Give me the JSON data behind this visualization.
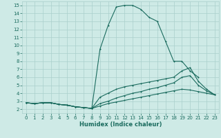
{
  "xlabel": "Humidex (Indice chaleur)",
  "bg_color": "#ceeae6",
  "grid_color": "#aacfcc",
  "line_color": "#1a6b5e",
  "xlim": [
    -0.5,
    23.5
  ],
  "ylim": [
    1.5,
    15.5
  ],
  "xticks": [
    0,
    1,
    2,
    3,
    4,
    5,
    6,
    7,
    8,
    9,
    10,
    11,
    12,
    13,
    14,
    15,
    16,
    17,
    18,
    19,
    20,
    21,
    22,
    23
  ],
  "yticks": [
    2,
    3,
    4,
    5,
    6,
    7,
    8,
    9,
    10,
    11,
    12,
    13,
    14,
    15
  ],
  "line1_x": [
    0,
    1,
    2,
    3,
    4,
    5,
    6,
    7,
    8,
    9,
    10,
    11,
    12,
    13,
    14,
    15,
    16,
    17,
    18,
    19,
    20,
    21
  ],
  "line1_y": [
    2.8,
    2.7,
    2.8,
    2.8,
    2.6,
    2.5,
    2.3,
    2.2,
    2.1,
    9.5,
    12.5,
    14.8,
    15.0,
    15.0,
    14.5,
    13.5,
    13.0,
    10.5,
    8.0,
    8.0,
    6.8,
    6.0
  ],
  "line2_x": [
    0,
    1,
    2,
    3,
    4,
    5,
    6,
    7,
    8,
    9,
    10,
    11,
    12,
    13,
    14,
    15,
    16,
    17,
    18,
    19,
    20,
    21,
    22,
    23
  ],
  "line2_y": [
    2.8,
    2.7,
    2.8,
    2.8,
    2.6,
    2.5,
    2.3,
    2.2,
    2.1,
    3.5,
    4.0,
    4.5,
    4.8,
    5.0,
    5.2,
    5.4,
    5.6,
    5.8,
    6.0,
    6.8,
    7.2,
    5.5,
    4.5,
    3.8
  ],
  "line3_x": [
    0,
    1,
    2,
    3,
    4,
    5,
    6,
    7,
    8,
    9,
    10,
    11,
    12,
    13,
    14,
    15,
    16,
    17,
    18,
    19,
    20,
    21,
    22,
    23
  ],
  "line3_y": [
    2.8,
    2.7,
    2.8,
    2.8,
    2.6,
    2.5,
    2.3,
    2.2,
    2.1,
    2.7,
    3.0,
    3.4,
    3.7,
    4.0,
    4.2,
    4.5,
    4.7,
    5.0,
    5.3,
    6.0,
    6.2,
    5.0,
    4.3,
    3.8
  ],
  "line4_x": [
    0,
    1,
    2,
    3,
    4,
    5,
    6,
    7,
    8,
    9,
    10,
    11,
    12,
    13,
    14,
    15,
    16,
    17,
    18,
    19,
    20,
    21,
    22,
    23
  ],
  "line4_y": [
    2.8,
    2.7,
    2.8,
    2.8,
    2.6,
    2.5,
    2.3,
    2.2,
    2.1,
    2.4,
    2.7,
    2.9,
    3.1,
    3.3,
    3.5,
    3.7,
    3.9,
    4.1,
    4.3,
    4.5,
    4.4,
    4.2,
    4.0,
    3.8
  ]
}
